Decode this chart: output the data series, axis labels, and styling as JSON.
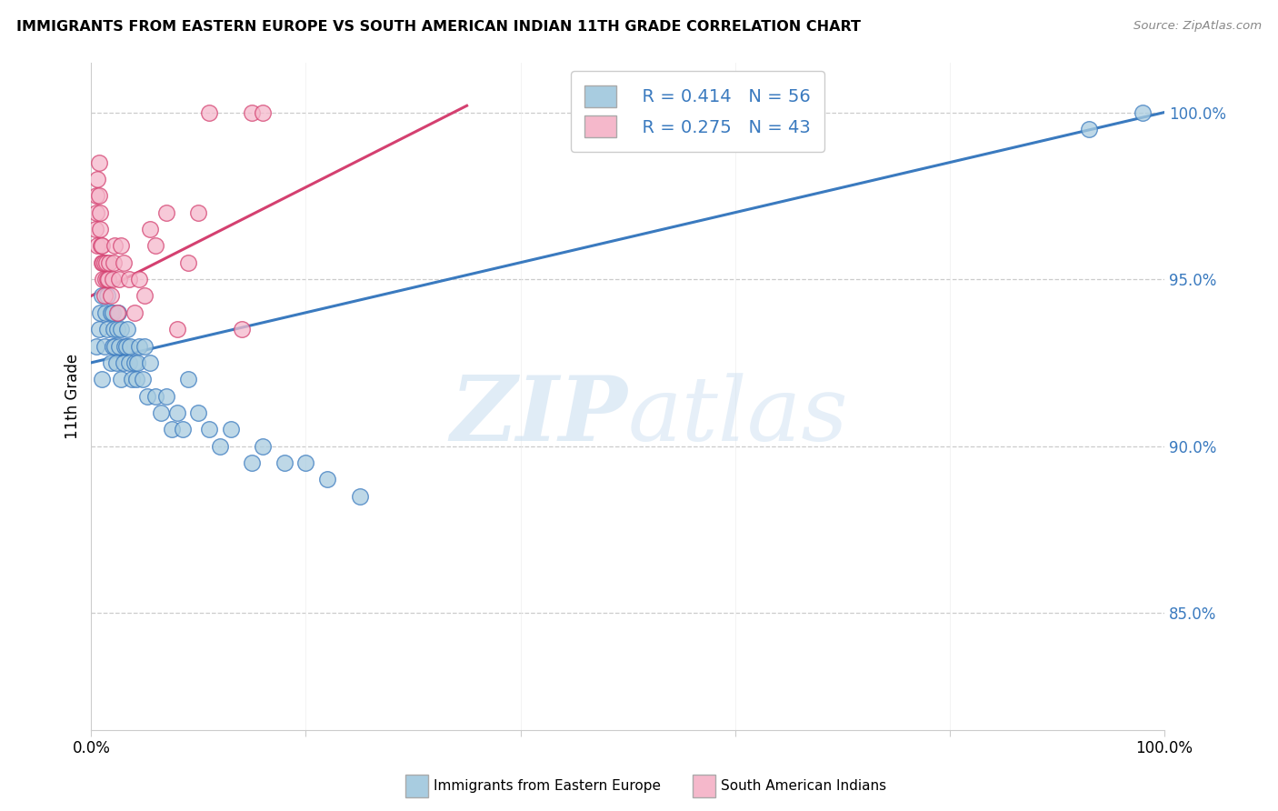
{
  "title": "IMMIGRANTS FROM EASTERN EUROPE VS SOUTH AMERICAN INDIAN 11TH GRADE CORRELATION CHART",
  "source": "Source: ZipAtlas.com",
  "ylabel": "11th Grade",
  "xlim": [
    0.0,
    1.0
  ],
  "ylim": [
    81.5,
    101.5
  ],
  "blue_R": 0.414,
  "blue_N": 56,
  "pink_R": 0.275,
  "pink_N": 43,
  "blue_color": "#a8cce0",
  "pink_color": "#f5b8cb",
  "blue_line_color": "#3a7abf",
  "pink_line_color": "#d44070",
  "watermark_zip": "ZIP",
  "watermark_atlas": "atlas",
  "y_ticks": [
    85.0,
    90.0,
    95.0,
    100.0
  ],
  "y_tick_labels": [
    "85.0%",
    "90.0%",
    "95.0%",
    "100.0%"
  ],
  "blue_scatter_x": [
    0.005,
    0.007,
    0.008,
    0.01,
    0.01,
    0.012,
    0.013,
    0.015,
    0.015,
    0.016,
    0.018,
    0.018,
    0.02,
    0.02,
    0.021,
    0.022,
    0.023,
    0.024,
    0.025,
    0.026,
    0.028,
    0.028,
    0.03,
    0.031,
    0.033,
    0.034,
    0.035,
    0.036,
    0.038,
    0.04,
    0.042,
    0.043,
    0.045,
    0.048,
    0.05,
    0.052,
    0.055,
    0.06,
    0.065,
    0.07,
    0.075,
    0.08,
    0.085,
    0.09,
    0.1,
    0.11,
    0.12,
    0.13,
    0.15,
    0.16,
    0.18,
    0.2,
    0.22,
    0.25,
    0.93,
    0.98
  ],
  "blue_scatter_y": [
    93.0,
    93.5,
    94.0,
    92.0,
    94.5,
    93.0,
    94.0,
    93.5,
    94.5,
    95.0,
    92.5,
    94.0,
    93.0,
    94.0,
    93.5,
    93.0,
    92.5,
    93.5,
    94.0,
    93.0,
    92.0,
    93.5,
    92.5,
    93.0,
    93.0,
    93.5,
    92.5,
    93.0,
    92.0,
    92.5,
    92.0,
    92.5,
    93.0,
    92.0,
    93.0,
    91.5,
    92.5,
    91.5,
    91.0,
    91.5,
    90.5,
    91.0,
    90.5,
    92.0,
    91.0,
    90.5,
    90.0,
    90.5,
    89.5,
    90.0,
    89.5,
    89.5,
    89.0,
    88.5,
    99.5,
    100.0
  ],
  "pink_scatter_x": [
    0.004,
    0.005,
    0.005,
    0.006,
    0.006,
    0.007,
    0.007,
    0.008,
    0.008,
    0.009,
    0.01,
    0.01,
    0.011,
    0.011,
    0.012,
    0.012,
    0.013,
    0.014,
    0.015,
    0.016,
    0.017,
    0.018,
    0.02,
    0.021,
    0.022,
    0.024,
    0.026,
    0.028,
    0.03,
    0.035,
    0.04,
    0.045,
    0.05,
    0.055,
    0.06,
    0.07,
    0.08,
    0.09,
    0.1,
    0.11,
    0.14,
    0.15,
    0.16
  ],
  "pink_scatter_y": [
    96.5,
    97.0,
    97.5,
    98.0,
    96.0,
    97.5,
    98.5,
    96.5,
    97.0,
    96.0,
    95.5,
    96.0,
    95.0,
    95.5,
    94.5,
    95.5,
    95.0,
    95.5,
    95.0,
    95.0,
    95.5,
    94.5,
    95.0,
    95.5,
    96.0,
    94.0,
    95.0,
    96.0,
    95.5,
    95.0,
    94.0,
    95.0,
    94.5,
    96.5,
    96.0,
    97.0,
    93.5,
    95.5,
    97.0,
    100.0,
    93.5,
    100.0,
    100.0
  ]
}
